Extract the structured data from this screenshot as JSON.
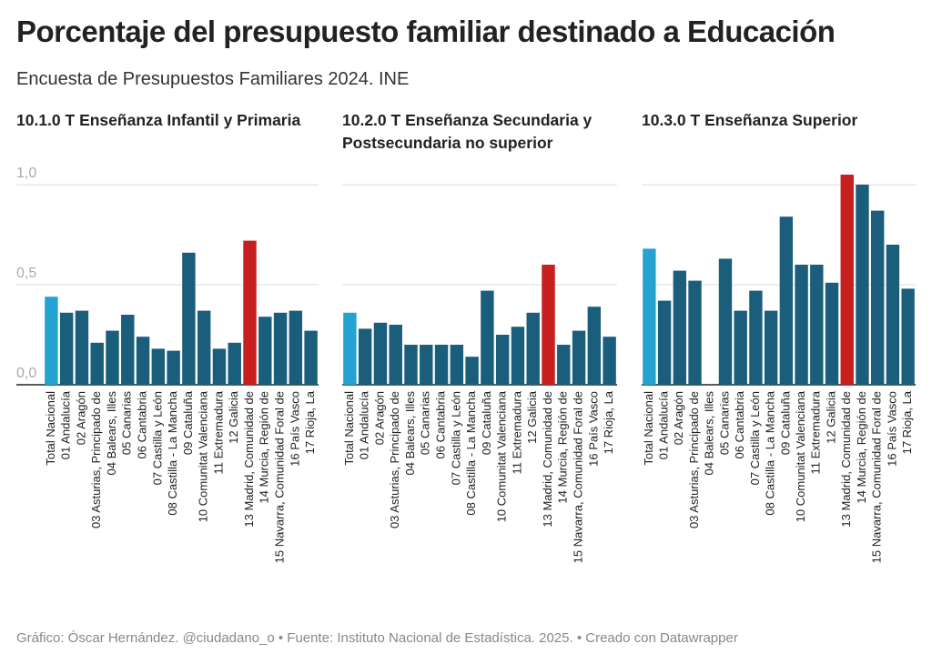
{
  "title": "Porcentaje del presupuesto familiar destinado a Educación",
  "subtitle": "Encuesta de Presupuestos Familiares 2024. INE",
  "footer": "Gráfico: Óscar Hernández. @ciudadano_o • Fuente: Instituto Nacional de Estadística. 2025. • Creado con Datawrapper",
  "chart_data": [
    {
      "type": "bar",
      "title": "10.1.0 T Enseñanza Infantil y Primaria",
      "categories": [
        "Total Nacional",
        "01 Andalucía",
        "02 Aragón",
        "03 Asturias, Principado de",
        "04 Balears, Illes",
        "05 Canarias",
        "06 Cantabria",
        "07 Castilla y León",
        "08 Castilla - La Mancha",
        "09 Cataluña",
        "10 Comunitat Valenciana",
        "11 Extremadura",
        "12 Galicia",
        "13 Madrid, Comunidad de",
        "14 Murcia, Región de",
        "15 Navarra, Comunidad Foral de",
        "16 País Vasco",
        "17 Rioja, La"
      ],
      "values": [
        0.44,
        0.36,
        0.37,
        0.21,
        0.27,
        0.35,
        0.24,
        0.18,
        0.17,
        0.66,
        0.37,
        0.18,
        0.21,
        0.72,
        0.34,
        0.36,
        0.37,
        0.27
      ],
      "colors": [
        "#24a3d3",
        "#1b5e7b",
        "#1b5e7b",
        "#1b5e7b",
        "#1b5e7b",
        "#1b5e7b",
        "#1b5e7b",
        "#1b5e7b",
        "#1b5e7b",
        "#1b5e7b",
        "#1b5e7b",
        "#1b5e7b",
        "#1b5e7b",
        "#c71e1e",
        "#1b5e7b",
        "#1b5e7b",
        "#1b5e7b",
        "#1b5e7b"
      ],
      "ylim": [
        0,
        1.1
      ],
      "yticks": [
        {
          "value": 0,
          "label": "0,0"
        },
        {
          "value": 0.5,
          "label": "0,5"
        },
        {
          "value": 1,
          "label": "1,0"
        }
      ],
      "grid": true
    },
    {
      "type": "bar",
      "title": "10.2.0 T Enseñanza Secundaria y Postsecundaria no superior",
      "categories": [
        "Total Nacional",
        "01 Andalucía",
        "02 Aragón",
        "03 Asturias, Principado de",
        "04 Balears, Illes",
        "05 Canarias",
        "06 Cantabria",
        "07 Castilla y León",
        "08 Castilla - La Mancha",
        "09 Cataluña",
        "10 Comunitat Valenciana",
        "11 Extremadura",
        "12 Galicia",
        "13 Madrid, Comunidad de",
        "14 Murcia, Región de",
        "15 Navarra, Comunidad Foral de",
        "16 País Vasco",
        "17 Rioja, La"
      ],
      "values": [
        0.36,
        0.28,
        0.31,
        0.3,
        0.2,
        0.2,
        0.2,
        0.2,
        0.14,
        0.47,
        0.25,
        0.29,
        0.36,
        0.6,
        0.2,
        0.27,
        0.39,
        0.24
      ],
      "colors": [
        "#24a3d3",
        "#1b5e7b",
        "#1b5e7b",
        "#1b5e7b",
        "#1b5e7b",
        "#1b5e7b",
        "#1b5e7b",
        "#1b5e7b",
        "#1b5e7b",
        "#1b5e7b",
        "#1b5e7b",
        "#1b5e7b",
        "#1b5e7b",
        "#c71e1e",
        "#1b5e7b",
        "#1b5e7b",
        "#1b5e7b",
        "#1b5e7b"
      ],
      "ylim": [
        0,
        1.1
      ],
      "grid": true
    },
    {
      "type": "bar",
      "title": "10.3.0 T Enseñanza Superior",
      "categories": [
        "Total Nacional",
        "01 Andalucía",
        "02 Aragón",
        "03 Asturias, Principado de",
        "04 Balears, Illes",
        "05 Canarias",
        "06 Cantabria",
        "07 Castilla y León",
        "08 Castilla - La Mancha",
        "09 Cataluña",
        "10 Comunitat Valenciana",
        "11 Extremadura",
        "12 Galicia",
        "13 Madrid, Comunidad de",
        "14 Murcia, Región de",
        "15 Navarra, Comunidad Foral de",
        "16 País Vasco",
        "17 Rioja, La"
      ],
      "values": [
        0.68,
        0.42,
        0.57,
        0.52,
        null,
        0.63,
        0.37,
        0.47,
        0.37,
        0.84,
        0.6,
        0.6,
        0.51,
        1.05,
        1.0,
        0.87,
        0.7,
        0.48
      ],
      "colors": [
        "#24a3d3",
        "#1b5e7b",
        "#1b5e7b",
        "#1b5e7b",
        "#1b5e7b",
        "#1b5e7b",
        "#1b5e7b",
        "#1b5e7b",
        "#1b5e7b",
        "#1b5e7b",
        "#1b5e7b",
        "#1b5e7b",
        "#1b5e7b",
        "#c71e1e",
        "#1b5e7b",
        "#1b5e7b",
        "#1b5e7b",
        "#1b5e7b"
      ],
      "ylim": [
        0,
        1.1
      ],
      "grid": true
    }
  ]
}
